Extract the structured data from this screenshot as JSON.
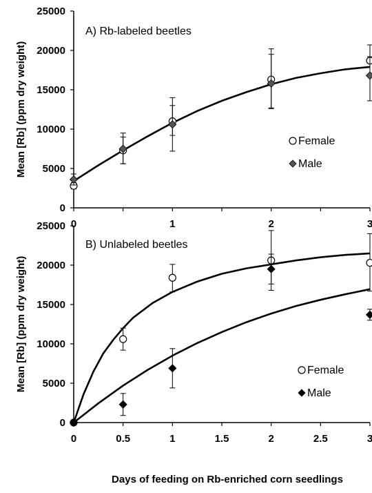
{
  "chart_data": [
    {
      "type": "scatter",
      "title": "A) Rb-labeled beetles",
      "ylabel": "Mean [Rb] (ppm dry weight)",
      "xlabel": "",
      "xlim": [
        0,
        3
      ],
      "ylim": [
        0,
        25000
      ],
      "x_ticks": [
        "0",
        "1",
        "2",
        "3"
      ],
      "y_ticks": [
        "0",
        "5000",
        "10000",
        "15000",
        "20000",
        "25000"
      ],
      "legend_position": "right-middle",
      "series": [
        {
          "name": "Female",
          "marker": "open-circle",
          "points": [
            {
              "x": 0,
              "y": 2800,
              "err_lo": 2400,
              "err_hi": 3200
            },
            {
              "x": 0.5,
              "y": 7300,
              "err_lo": 5600,
              "err_hi": 9000
            },
            {
              "x": 1,
              "y": 11000,
              "err_lo": 9200,
              "err_hi": 14000
            },
            {
              "x": 2,
              "y": 16300,
              "err_lo": 12700,
              "err_hi": 20200
            },
            {
              "x": 3,
              "y": 18700,
              "err_lo": 16700,
              "err_hi": 20700
            }
          ]
        },
        {
          "name": "Male",
          "marker": "filled-diamond",
          "color": "#555555",
          "points": [
            {
              "x": 0,
              "y": 3600,
              "err_lo": 2900,
              "err_hi": 4300
            },
            {
              "x": 0.5,
              "y": 7500,
              "err_lo": 5600,
              "err_hi": 9500
            },
            {
              "x": 1,
              "y": 10600,
              "err_lo": 7200,
              "err_hi": 13000
            },
            {
              "x": 2,
              "y": 15800,
              "err_lo": 12600,
              "err_hi": 19500
            },
            {
              "x": 3,
              "y": 16800,
              "err_lo": 13600,
              "err_hi": 19200
            }
          ]
        }
      ],
      "fit_curves": [
        {
          "x": [
            0,
            0.25,
            0.5,
            0.75,
            1,
            1.25,
            1.5,
            1.75,
            2,
            2.25,
            2.5,
            2.75,
            3
          ],
          "y": [
            3400,
            5400,
            7300,
            9100,
            10800,
            12300,
            13600,
            14700,
            15700,
            16500,
            17100,
            17600,
            17900
          ]
        }
      ]
    },
    {
      "type": "scatter",
      "title": "B) Unlabeled beetles",
      "ylabel": "Mean [Rb] (ppm dry weight)",
      "xlabel": "Days of feeding on Rb-enriched corn seedlings",
      "xlim": [
        0,
        3
      ],
      "ylim": [
        0,
        25000
      ],
      "x_ticks": [
        "0",
        "0.5",
        "1",
        "1.5",
        "2",
        "2.5",
        "3"
      ],
      "y_ticks": [
        "0",
        "5000",
        "10000",
        "15000",
        "20000",
        "25000"
      ],
      "legend_position": "right-lower",
      "series": [
        {
          "name": "Female",
          "marker": "open-circle",
          "points": [
            {
              "x": 0,
              "y": 0,
              "err_lo": 0,
              "err_hi": 0
            },
            {
              "x": 0.5,
              "y": 10600,
              "err_lo": 9200,
              "err_hi": 12000
            },
            {
              "x": 1,
              "y": 18400,
              "err_lo": 16600,
              "err_hi": 20100
            },
            {
              "x": 2,
              "y": 20600,
              "err_lo": 16800,
              "err_hi": 24400
            },
            {
              "x": 3,
              "y": 20300,
              "err_lo": 16700,
              "err_hi": 24000
            }
          ]
        },
        {
          "name": "Male",
          "marker": "filled-diamond",
          "color": "#000000",
          "points": [
            {
              "x": 0,
              "y": 0,
              "err_lo": 0,
              "err_hi": 0
            },
            {
              "x": 0.5,
              "y": 2300,
              "err_lo": 900,
              "err_hi": 3700
            },
            {
              "x": 1,
              "y": 6900,
              "err_lo": 4400,
              "err_hi": 9400
            },
            {
              "x": 2,
              "y": 19500,
              "err_lo": 17600,
              "err_hi": 21400
            },
            {
              "x": 3,
              "y": 13700,
              "err_lo": 13000,
              "err_hi": 14400
            }
          ]
        }
      ],
      "fit_curves": [
        {
          "x": [
            0,
            0.1,
            0.2,
            0.3,
            0.4,
            0.5,
            0.6,
            0.8,
            1,
            1.25,
            1.5,
            1.75,
            2,
            2.25,
            2.5,
            2.75,
            3
          ],
          "y": [
            0,
            3600,
            6500,
            8800,
            10500,
            12000,
            13300,
            15200,
            16600,
            17900,
            18900,
            19600,
            20100,
            20600,
            21000,
            21300,
            21500
          ]
        },
        {
          "x": [
            0,
            0.25,
            0.5,
            0.75,
            1,
            1.25,
            1.5,
            1.75,
            2,
            2.25,
            2.5,
            2.75,
            3
          ],
          "y": [
            0,
            2450,
            4700,
            6700,
            8500,
            10100,
            11500,
            12750,
            13850,
            14800,
            15600,
            16300,
            16950
          ]
        }
      ]
    }
  ]
}
